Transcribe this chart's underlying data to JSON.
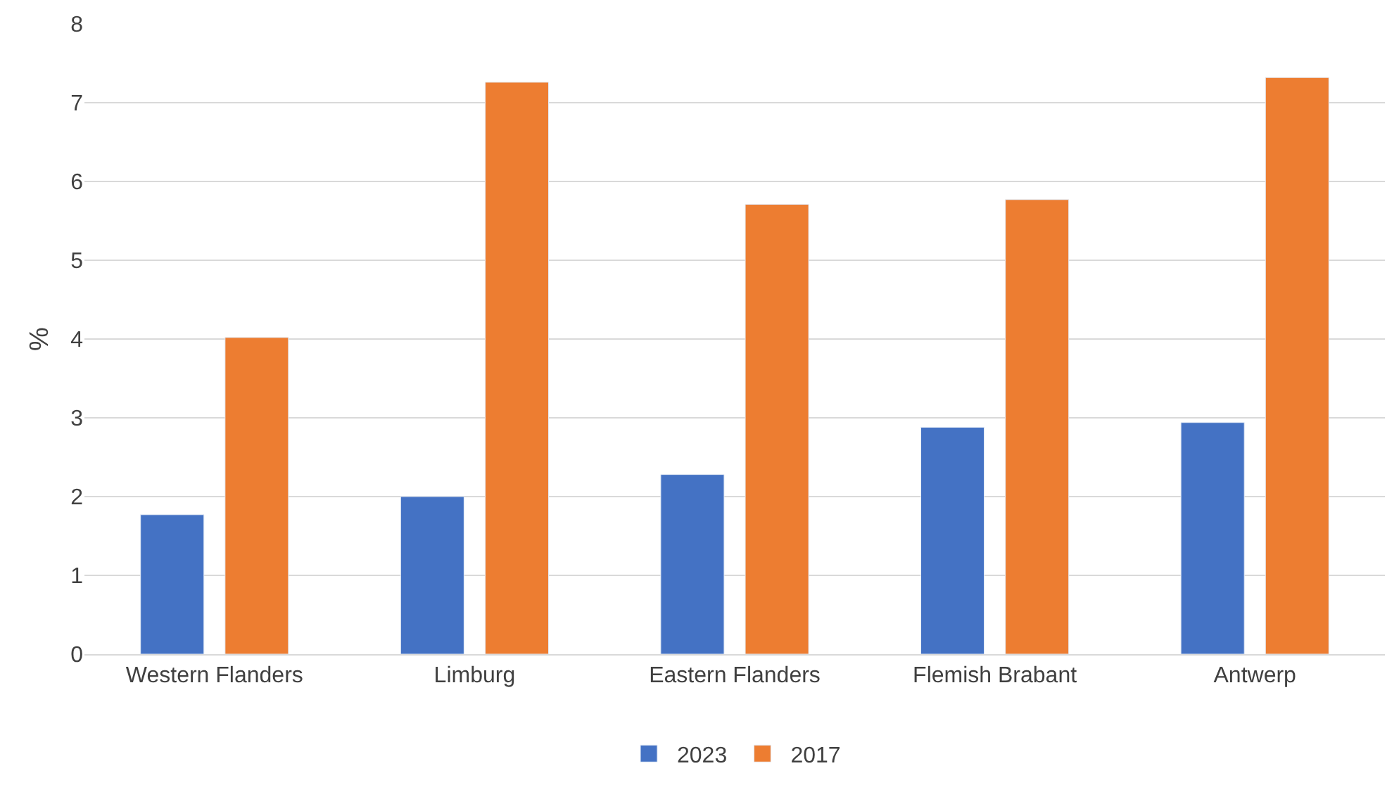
{
  "chart_data": {
    "type": "bar",
    "ylabel": "%",
    "categories": [
      "Western Flanders",
      "Limburg",
      "Eastern Flanders",
      "Flemish Brabant",
      "Antwerp"
    ],
    "series": [
      {
        "name": "2023",
        "color": "#4472c4",
        "values": [
          1.77,
          2.0,
          2.28,
          2.88,
          2.94
        ]
      },
      {
        "name": "2017",
        "color": "#ed7d31",
        "values": [
          4.02,
          7.26,
          5.71,
          5.77,
          7.32
        ]
      }
    ],
    "ylim": [
      0,
      8
    ],
    "yticks": [
      0,
      1,
      2,
      3,
      4,
      5,
      6,
      7,
      8
    ],
    "grid": "y",
    "legend": "bottom"
  }
}
